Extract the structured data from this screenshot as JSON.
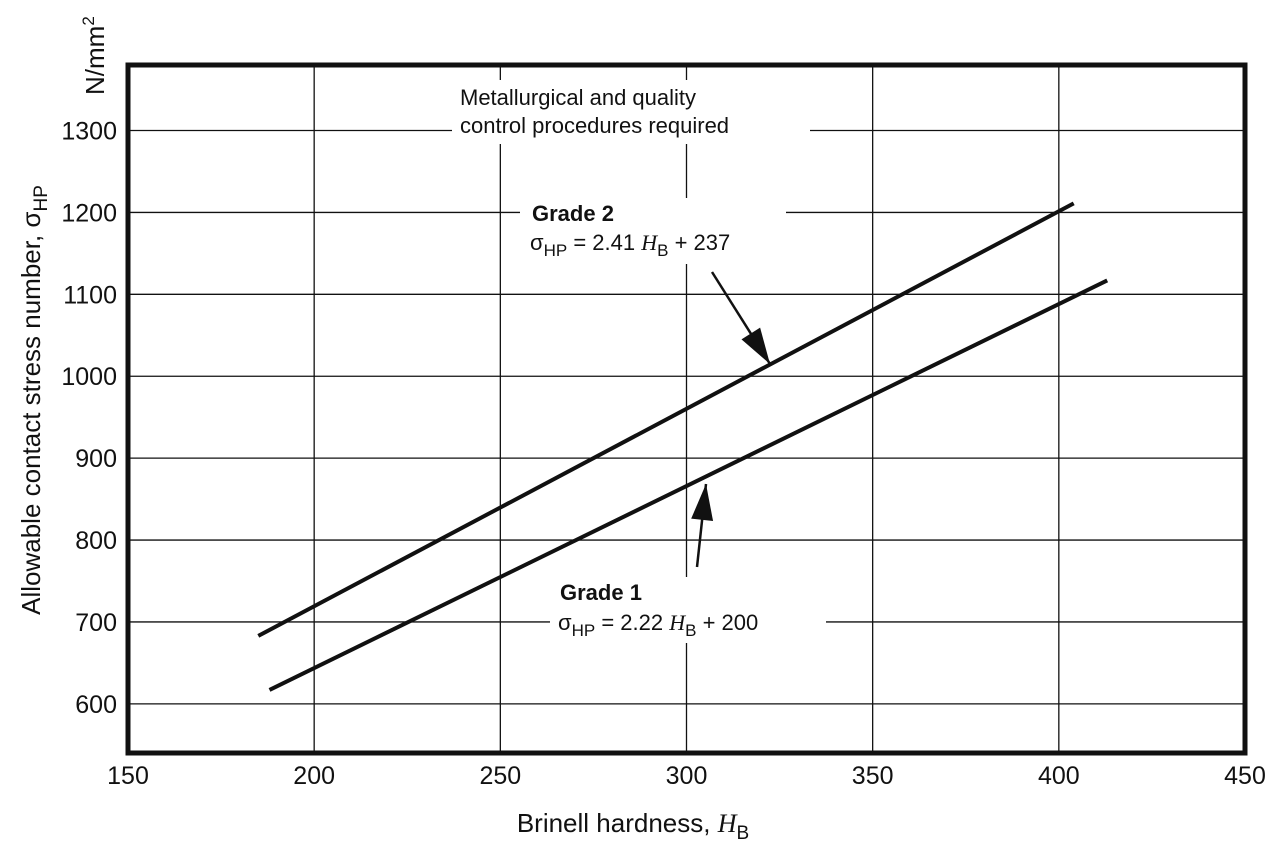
{
  "chart_data": {
    "type": "line",
    "title": "",
    "xlabel": {
      "text": "Brinell hardness, ",
      "var": "H",
      "sub": "B"
    },
    "ylabel": {
      "text": "Allowable contact stress number, ",
      "sym": "σ",
      "sub": "HP"
    },
    "yunit": {
      "text": "N/mm",
      "sup": "2"
    },
    "xlim": [
      150,
      450
    ],
    "ylim": [
      540,
      1380
    ],
    "xticks": [
      150,
      200,
      250,
      300,
      350,
      400,
      450
    ],
    "yticks": [
      600,
      700,
      800,
      900,
      1000,
      1100,
      1200,
      1300
    ],
    "grid": true,
    "series": [
      {
        "name": "Grade 2",
        "equation": {
          "sym": "σ",
          "sub": "HP",
          "eq": " = 2.41 ",
          "var": "H",
          "varsub": "B",
          "rest": " + 237"
        },
        "x": [
          185,
          404
        ],
        "y": [
          683,
          1211
        ],
        "color": "#111111"
      },
      {
        "name": "Grade 1",
        "equation": {
          "sym": "σ",
          "sub": "HP",
          "eq": " = 2.22 ",
          "var": "H",
          "varsub": "B",
          "rest": " + 200"
        },
        "x": [
          188,
          413
        ],
        "y": [
          617,
          1117
        ],
        "color": "#111111"
      }
    ],
    "annotations": [
      {
        "lines": [
          "Metallurgical and quality",
          "control procedures required"
        ]
      }
    ]
  }
}
